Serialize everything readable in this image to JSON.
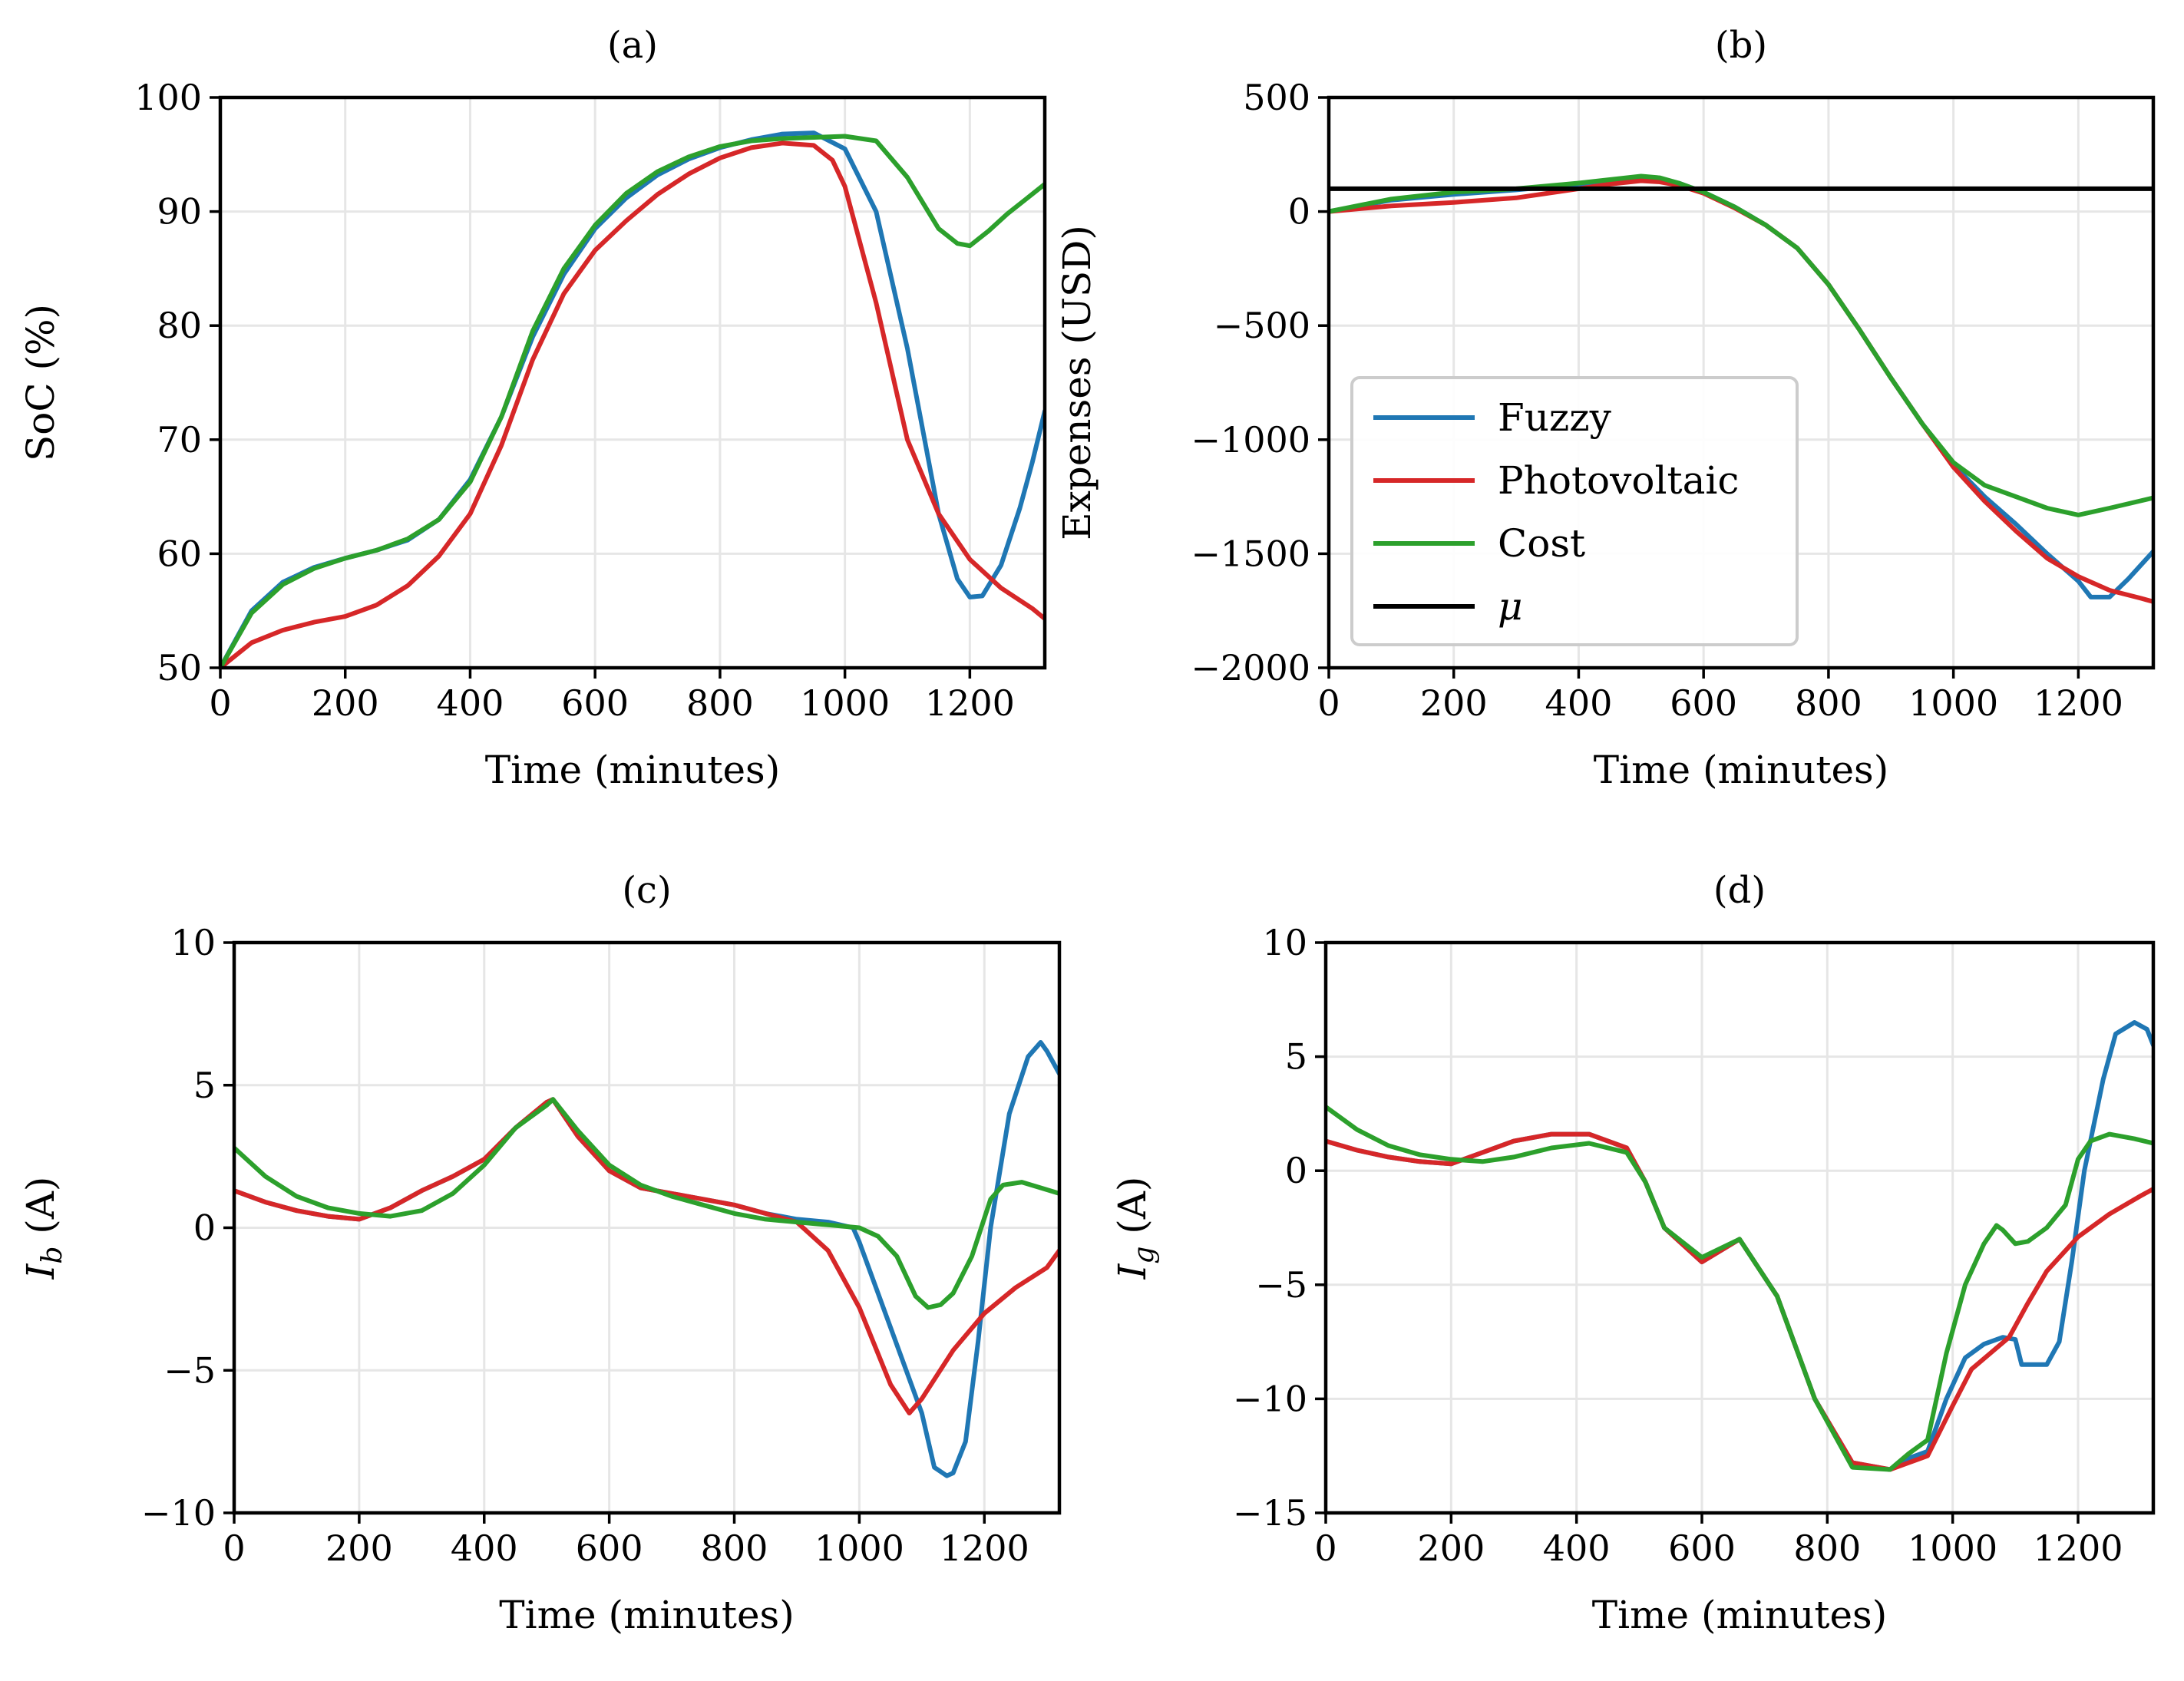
{
  "chart_data": [
    {
      "id": "a",
      "type": "line",
      "title": "(a)",
      "xlabel": "Time (minutes)",
      "ylabel": "SoC (%)",
      "xlim": [
        0,
        1320
      ],
      "ylim": [
        50,
        100
      ],
      "xticks": [
        0,
        200,
        400,
        600,
        800,
        1000,
        1200
      ],
      "yticks": [
        50,
        60,
        70,
        80,
        90,
        100
      ],
      "ytick_labels": [
        "50",
        "60",
        "70",
        "80",
        "90",
        "100"
      ],
      "grid": true,
      "series": [
        {
          "name": "Fuzzy",
          "color": "#1f77b4",
          "x": [
            0,
            50,
            100,
            150,
            200,
            250,
            300,
            350,
            400,
            450,
            500,
            550,
            600,
            650,
            700,
            750,
            800,
            850,
            900,
            950,
            1000,
            1050,
            1100,
            1150,
            1180,
            1200,
            1220,
            1250,
            1280,
            1300,
            1320
          ],
          "y": [
            50,
            55,
            57.5,
            58.8,
            59.6,
            60.3,
            61.2,
            63,
            66.5,
            72,
            79,
            84.5,
            88.5,
            91.2,
            93.2,
            94.6,
            95.6,
            96.3,
            96.8,
            96.9,
            95.5,
            90,
            78,
            63.5,
            57.8,
            56.2,
            56.3,
            59,
            64,
            68,
            72.5
          ]
        },
        {
          "name": "Photovoltaic",
          "color": "#d62728",
          "x": [
            0,
            50,
            100,
            150,
            200,
            250,
            300,
            350,
            400,
            450,
            500,
            550,
            600,
            650,
            700,
            750,
            800,
            850,
            900,
            950,
            980,
            1000,
            1050,
            1100,
            1150,
            1200,
            1250,
            1300,
            1320
          ],
          "y": [
            50,
            52.2,
            53.3,
            54,
            54.5,
            55.5,
            57.2,
            59.8,
            63.5,
            69.5,
            77,
            82.8,
            86.6,
            89.2,
            91.5,
            93.3,
            94.7,
            95.6,
            96,
            95.8,
            94.5,
            92.2,
            82,
            70,
            63.5,
            59.5,
            57,
            55.2,
            54.3
          ]
        },
        {
          "name": "Cost",
          "color": "#2ca02c",
          "x": [
            0,
            50,
            100,
            150,
            200,
            250,
            300,
            350,
            400,
            450,
            500,
            550,
            600,
            650,
            700,
            750,
            800,
            850,
            900,
            950,
            1000,
            1050,
            1100,
            1150,
            1180,
            1200,
            1230,
            1260,
            1290,
            1320
          ],
          "y": [
            50,
            54.8,
            57.3,
            58.7,
            59.6,
            60.3,
            61.3,
            63,
            66.3,
            72,
            79.5,
            85,
            88.8,
            91.6,
            93.5,
            94.8,
            95.7,
            96.2,
            96.4,
            96.5,
            96.6,
            96.2,
            93,
            88.5,
            87.2,
            87,
            88.3,
            89.8,
            91.1,
            92.4
          ]
        }
      ]
    },
    {
      "id": "b",
      "type": "line",
      "title": "(b)",
      "xlabel": "Time (minutes)",
      "ylabel": "Expenses (USD)",
      "xlim": [
        0,
        1320
      ],
      "ylim": [
        -2000,
        500
      ],
      "xticks": [
        0,
        200,
        400,
        600,
        800,
        1000,
        1200
      ],
      "yticks": [
        -2000,
        -1500,
        -1000,
        -500,
        0,
        500
      ],
      "ytick_labels": [
        "−2000",
        "−1500",
        "−1000",
        "−500",
        "0",
        "500"
      ],
      "grid": true,
      "legend": {
        "position": "center-left",
        "entries": [
          "Fuzzy",
          "Photovoltaic",
          "Cost",
          "μ"
        ]
      },
      "series": [
        {
          "name": "Fuzzy",
          "color": "#1f77b4",
          "x": [
            0,
            100,
            200,
            300,
            400,
            450,
            500,
            530,
            560,
            600,
            650,
            700,
            750,
            800,
            850,
            900,
            950,
            1000,
            1050,
            1100,
            1150,
            1200,
            1220,
            1250,
            1280,
            1320
          ],
          "y": [
            0,
            50,
            75,
            95,
            120,
            135,
            150,
            145,
            125,
            85,
            20,
            -60,
            -160,
            -320,
            -520,
            -730,
            -930,
            -1110,
            -1250,
            -1370,
            -1500,
            -1620,
            -1690,
            -1690,
            -1610,
            -1490
          ]
        },
        {
          "name": "Photovoltaic",
          "color": "#d62728",
          "x": [
            0,
            100,
            200,
            300,
            400,
            450,
            500,
            530,
            560,
            600,
            650,
            700,
            750,
            800,
            850,
            900,
            950,
            1000,
            1050,
            1100,
            1150,
            1200,
            1250,
            1300,
            1320
          ],
          "y": [
            0,
            25,
            40,
            60,
            100,
            120,
            135,
            130,
            115,
            80,
            15,
            -60,
            -160,
            -320,
            -520,
            -730,
            -930,
            -1120,
            -1270,
            -1400,
            -1520,
            -1600,
            -1660,
            -1695,
            -1710
          ]
        },
        {
          "name": "Cost",
          "color": "#2ca02c",
          "x": [
            0,
            100,
            200,
            300,
            400,
            450,
            500,
            530,
            560,
            600,
            650,
            700,
            750,
            800,
            850,
            900,
            950,
            1000,
            1050,
            1100,
            1150,
            1200,
            1250,
            1320
          ],
          "y": [
            0,
            55,
            85,
            100,
            125,
            140,
            155,
            148,
            125,
            85,
            20,
            -60,
            -160,
            -320,
            -520,
            -730,
            -930,
            -1100,
            -1200,
            -1250,
            -1300,
            -1330,
            -1300,
            -1255
          ]
        },
        {
          "name": "μ",
          "color": "#000000",
          "x": [
            0,
            1320
          ],
          "y": [
            100,
            100
          ]
        }
      ]
    },
    {
      "id": "c",
      "type": "line",
      "title": "(c)",
      "xlabel": "Time (minutes)",
      "ylabel": "Ib (A)",
      "xlim": [
        0,
        1320
      ],
      "ylim": [
        -10,
        10
      ],
      "xticks": [
        0,
        200,
        400,
        600,
        800,
        1000,
        1200
      ],
      "yticks": [
        -10,
        -5,
        0,
        5,
        10
      ],
      "ytick_labels": [
        "−10",
        "−5",
        "0",
        "5",
        "10"
      ],
      "grid": true,
      "series": [
        {
          "name": "Fuzzy",
          "color": "#1f77b4",
          "x": [
            0,
            50,
            100,
            150,
            200,
            250,
            300,
            350,
            400,
            450,
            500,
            510,
            550,
            600,
            650,
            700,
            750,
            800,
            850,
            900,
            950,
            990,
            1000,
            1050,
            1100,
            1120,
            1140,
            1150,
            1170,
            1190,
            1210,
            1240,
            1270,
            1290,
            1300,
            1320
          ],
          "y": [
            1.3,
            0.9,
            0.6,
            0.4,
            0.3,
            0.7,
            1.3,
            1.8,
            2.4,
            3.5,
            4.4,
            4.5,
            3.2,
            2,
            1.4,
            1.2,
            1,
            0.8,
            0.5,
            0.3,
            0.2,
            0,
            -0.5,
            -3.5,
            -6.5,
            -8.4,
            -8.7,
            -8.6,
            -7.5,
            -4,
            0,
            4,
            6,
            6.5,
            6.2,
            5.4
          ]
        },
        {
          "name": "Photovoltaic",
          "color": "#d62728",
          "x": [
            0,
            50,
            100,
            150,
            200,
            250,
            300,
            350,
            400,
            450,
            500,
            510,
            550,
            600,
            650,
            700,
            750,
            800,
            850,
            900,
            950,
            1000,
            1050,
            1080,
            1100,
            1150,
            1200,
            1250,
            1300,
            1320
          ],
          "y": [
            1.3,
            0.9,
            0.6,
            0.4,
            0.3,
            0.7,
            1.3,
            1.8,
            2.4,
            3.5,
            4.4,
            4.5,
            3.2,
            2,
            1.4,
            1.2,
            1,
            0.8,
            0.5,
            0.2,
            -0.8,
            -2.8,
            -5.5,
            -6.5,
            -6,
            -4.3,
            -3,
            -2.1,
            -1.4,
            -0.8
          ]
        },
        {
          "name": "Cost",
          "color": "#2ca02c",
          "x": [
            0,
            50,
            100,
            150,
            200,
            250,
            300,
            350,
            400,
            450,
            500,
            510,
            550,
            600,
            650,
            700,
            750,
            800,
            850,
            900,
            950,
            1000,
            1030,
            1060,
            1090,
            1110,
            1130,
            1150,
            1180,
            1210,
            1230,
            1260,
            1290,
            1320
          ],
          "y": [
            2.8,
            1.8,
            1.1,
            0.7,
            0.5,
            0.4,
            0.6,
            1.2,
            2.2,
            3.5,
            4.3,
            4.5,
            3.4,
            2.2,
            1.5,
            1.1,
            0.8,
            0.5,
            0.3,
            0.2,
            0.1,
            0,
            -0.3,
            -1,
            -2.4,
            -2.8,
            -2.7,
            -2.3,
            -1,
            1,
            1.5,
            1.6,
            1.4,
            1.2
          ]
        }
      ]
    },
    {
      "id": "d",
      "type": "line",
      "title": "(d)",
      "xlabel": "Time (minutes)",
      "ylabel": "Ig (A)",
      "xlim": [
        0,
        1320
      ],
      "ylim": [
        -15,
        10
      ],
      "xticks": [
        0,
        200,
        400,
        600,
        800,
        1000,
        1200
      ],
      "yticks": [
        -15,
        -10,
        -5,
        0,
        5,
        10
      ],
      "ytick_labels": [
        "−15",
        "−10",
        "−5",
        "0",
        "5",
        "10"
      ],
      "grid": true,
      "series": [
        {
          "name": "Fuzzy",
          "color": "#1f77b4",
          "x": [
            0,
            50,
            100,
            150,
            200,
            250,
            300,
            360,
            420,
            480,
            510,
            540,
            600,
            660,
            720,
            780,
            840,
            900,
            930,
            960,
            990,
            1020,
            1050,
            1080,
            1100,
            1110,
            1150,
            1170,
            1190,
            1210,
            1240,
            1260,
            1290,
            1310,
            1320
          ],
          "y": [
            1.3,
            0.9,
            0.6,
            0.4,
            0.3,
            0.8,
            1.3,
            1.6,
            1.6,
            1,
            -0.5,
            -2.5,
            -4,
            -3,
            -5.5,
            -10,
            -12.8,
            -13.1,
            -12.6,
            -12.3,
            -10,
            -8.2,
            -7.6,
            -7.3,
            -7.4,
            -8.5,
            -8.5,
            -7.5,
            -4,
            0,
            4,
            6,
            6.5,
            6.2,
            5.5
          ]
        },
        {
          "name": "Photovoltaic",
          "color": "#d62728",
          "x": [
            0,
            50,
            100,
            150,
            200,
            250,
            300,
            360,
            420,
            480,
            510,
            540,
            600,
            660,
            720,
            780,
            840,
            900,
            930,
            960,
            1000,
            1030,
            1060,
            1090,
            1120,
            1150,
            1200,
            1250,
            1300,
            1320
          ],
          "y": [
            1.3,
            0.9,
            0.6,
            0.4,
            0.3,
            0.8,
            1.3,
            1.6,
            1.6,
            1,
            -0.5,
            -2.5,
            -4,
            -3,
            -5.5,
            -10,
            -12.8,
            -13.1,
            -12.8,
            -12.5,
            -10.3,
            -8.7,
            -8,
            -7.3,
            -5.8,
            -4.4,
            -2.9,
            -1.9,
            -1.1,
            -0.8
          ]
        },
        {
          "name": "Cost",
          "color": "#2ca02c",
          "x": [
            0,
            50,
            100,
            150,
            200,
            250,
            300,
            360,
            420,
            480,
            510,
            540,
            600,
            660,
            720,
            780,
            840,
            900,
            930,
            960,
            990,
            1020,
            1050,
            1070,
            1080,
            1100,
            1120,
            1150,
            1180,
            1200,
            1220,
            1250,
            1290,
            1320
          ],
          "y": [
            2.8,
            1.8,
            1.1,
            0.7,
            0.5,
            0.4,
            0.6,
            1,
            1.2,
            0.8,
            -0.5,
            -2.5,
            -3.8,
            -3,
            -5.5,
            -10,
            -13,
            -13.1,
            -12.4,
            -11.8,
            -8,
            -5,
            -3.2,
            -2.4,
            -2.6,
            -3.2,
            -3.1,
            -2.5,
            -1.5,
            0.5,
            1.3,
            1.6,
            1.4,
            1.2
          ]
        }
      ]
    }
  ]
}
